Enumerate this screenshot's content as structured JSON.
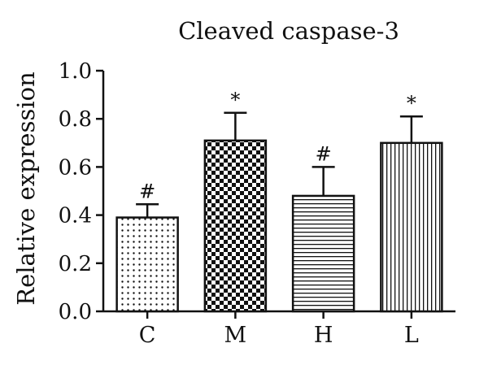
{
  "chart_data": {
    "type": "bar",
    "title": "Cleaved caspase-3",
    "xlabel": "",
    "ylabel": "Relative expression",
    "categories": [
      "C",
      "M",
      "H",
      "L"
    ],
    "values": [
      0.39,
      0.71,
      0.48,
      0.7
    ],
    "error_upper": [
      0.445,
      0.825,
      0.6,
      0.81
    ],
    "annotations": [
      "#",
      "*",
      "#",
      "*"
    ],
    "patterns": [
      "dots",
      "checkerboard",
      "horizontal-lines",
      "vertical-lines"
    ],
    "ylim": [
      0,
      1.0
    ],
    "yticks": [
      0.0,
      0.2,
      0.4,
      0.6,
      0.8,
      1.0
    ],
    "ytick_labels": [
      "0.0",
      "0.2",
      "0.4",
      "0.6",
      "0.8",
      "1.0"
    ],
    "grid": false,
    "legend": "none",
    "colors": {
      "stroke": "#111111",
      "background": "#ffffff"
    }
  }
}
